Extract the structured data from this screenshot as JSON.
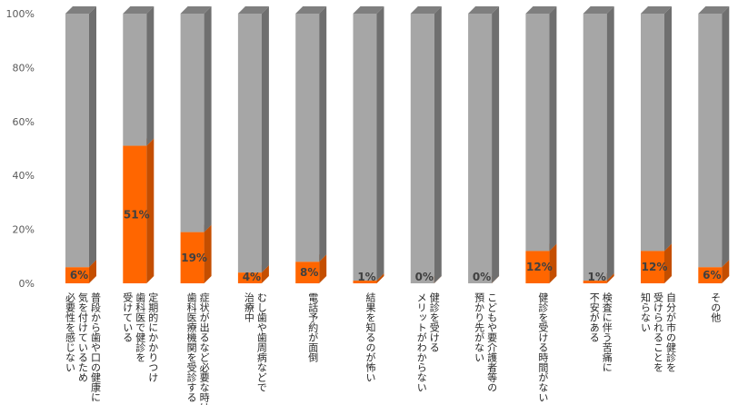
{
  "chart_data": {
    "type": "bar",
    "stacked": true,
    "three_d": true,
    "categories": [
      [
        "普段から歯や口の健康に",
        "気を付けているため",
        "必要性を感じない"
      ],
      [
        "定期的にかかりつけ",
        "歯科医で健診を",
        "受けている"
      ],
      [
        "症状が出るなど必要な時は",
        "歯科医療機関を受診する"
      ],
      [
        "むし歯や歯周病などで",
        "治療中"
      ],
      [
        "電話予約が面倒"
      ],
      [
        "結果を知るのが怖い"
      ],
      [
        "健診を受ける",
        "メリットがわからない"
      ],
      [
        "こどもや要介護者等の",
        "預かり先がない"
      ],
      [
        "健診を受ける時間がない"
      ],
      [
        "検査に伴う苦痛に",
        "不安がある"
      ],
      [
        "自分が市の健診を",
        "受けられることを",
        "知らない"
      ],
      [
        "その他"
      ]
    ],
    "series": [
      {
        "values": [
          6,
          51,
          19,
          4,
          8,
          1,
          0,
          0,
          12,
          1,
          12,
          6
        ],
        "color": "#ff6600",
        "side_color": "#c44e00",
        "top_color": "#ff8a3d"
      },
      {
        "values": [
          94,
          49,
          81,
          96,
          92,
          99,
          100,
          100,
          88,
          99,
          88,
          94
        ],
        "color": "#a6a6a6",
        "side_color": "#6f6f6f",
        "top_color": "#7f7f7f"
      }
    ],
    "data_labels": [
      "6%",
      "51%",
      "19%",
      "4%",
      "8%",
      "1%",
      "0%",
      "0%",
      "12%",
      "1%",
      "12%",
      "6%"
    ],
    "yticks": [
      "0%",
      "20%",
      "40%",
      "60%",
      "80%",
      "100%"
    ],
    "ylim": [
      0,
      100
    ],
    "grid": false,
    "legend": "none"
  }
}
